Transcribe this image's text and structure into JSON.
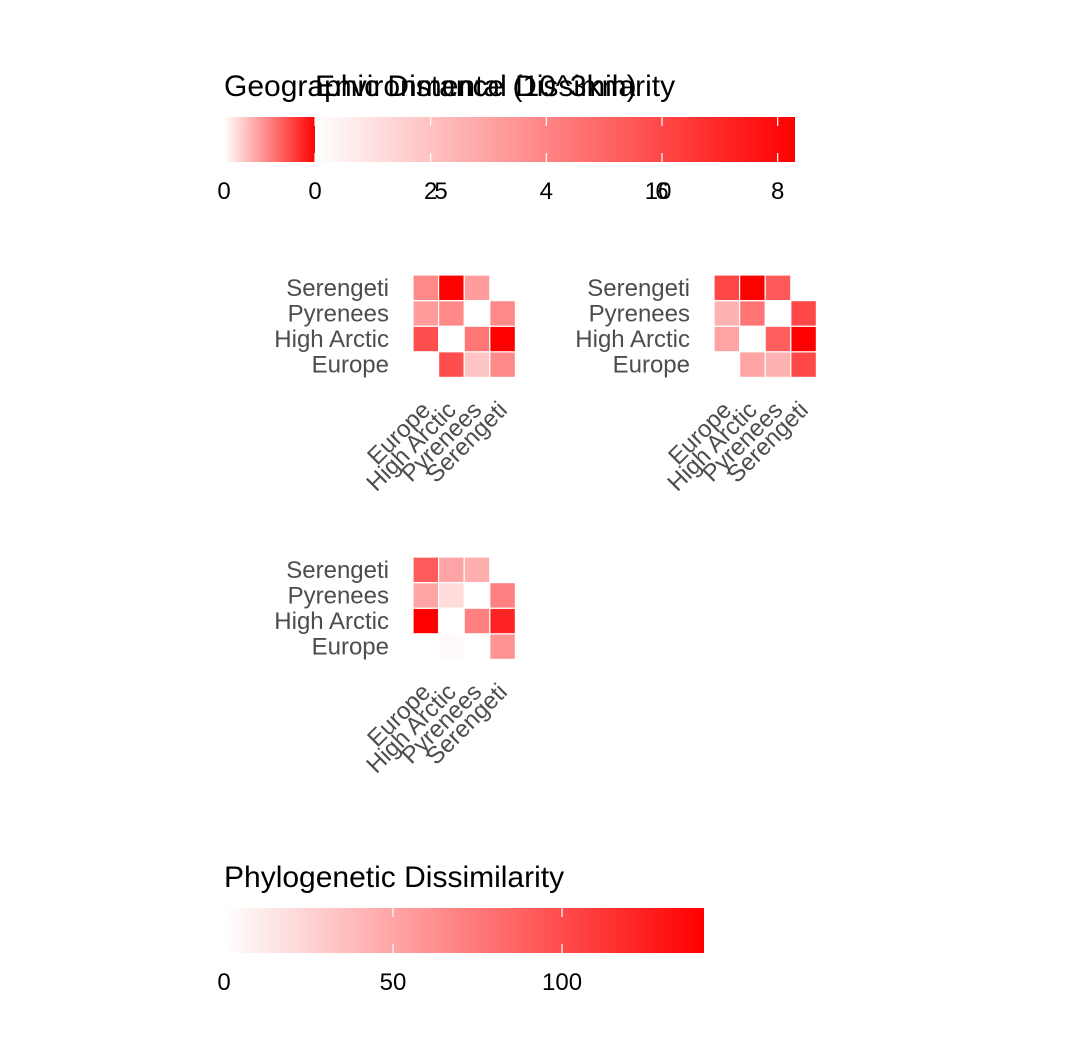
{
  "colors": {
    "low": "#ffffff",
    "high": "#ff0000",
    "axis_text": "#4d4d4d",
    "title_text": "#000000",
    "tick_mark": "#ffffff"
  },
  "legends": [
    {
      "title": "Geographic Distance (10^3km)",
      "ticks": [
        0,
        5,
        10
      ],
      "range": [
        0,
        13.2
      ]
    },
    {
      "title": "Environmental Dissimilarity",
      "ticks": [
        0,
        2,
        4,
        6,
        8
      ],
      "range": [
        0,
        8.3
      ]
    },
    {
      "title": "Phylogenetic Dissimilarity",
      "ticks": [
        0,
        50,
        100
      ],
      "range": [
        0,
        142
      ]
    }
  ],
  "chart_data": [
    {
      "type": "heatmap",
      "x_categories": [
        "Europe",
        "High Arctic",
        "Pyrenees",
        "Serengeti"
      ],
      "y_categories": [
        "Europe",
        "High Arctic",
        "Pyrenees",
        "Serengeti"
      ],
      "values": [
        [
          null,
          9.0,
          3.0,
          6.0
        ],
        [
          9.0,
          null,
          7.0,
          13.0
        ],
        [
          5.0,
          6.0,
          null,
          6.0
        ],
        [
          6.0,
          13.0,
          5.0,
          null
        ]
      ]
    },
    {
      "type": "heatmap",
      "x_categories": [
        "Europe",
        "High Arctic",
        "Pyrenees",
        "Serengeti"
      ],
      "y_categories": [
        "Europe",
        "High Arctic",
        "Pyrenees",
        "Serengeti"
      ],
      "values": [
        [
          null,
          3.0,
          2.5,
          6.0
        ],
        [
          3.0,
          null,
          5.2,
          8.3
        ],
        [
          2.5,
          4.5,
          null,
          6.0
        ],
        [
          6.0,
          8.3,
          5.4,
          null
        ]
      ]
    },
    {
      "type": "heatmap",
      "x_categories": [
        "Europe",
        "High Arctic",
        "Pyrenees",
        "Serengeti"
      ],
      "y_categories": [
        "Europe",
        "High Arctic",
        "Pyrenees",
        "Serengeti"
      ],
      "values": [
        [
          null,
          3.0,
          0.0,
          60.0
        ],
        [
          140.0,
          null,
          70.0,
          120.0
        ],
        [
          50.0,
          20.0,
          null,
          70.0
        ],
        [
          90.0,
          50.0,
          45.0,
          null
        ]
      ]
    }
  ]
}
